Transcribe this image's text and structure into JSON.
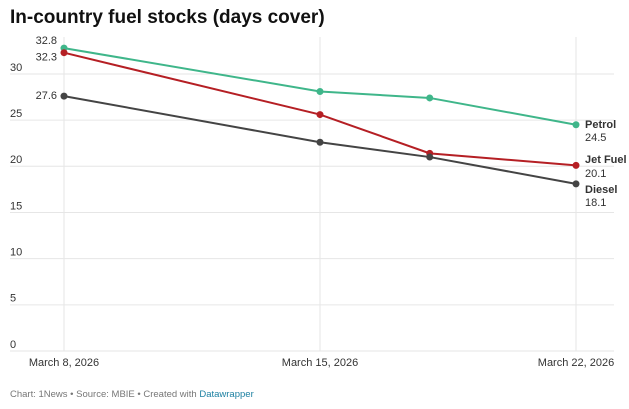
{
  "chart_data": {
    "type": "line",
    "title": "In-country fuel stocks (days cover)",
    "x": [
      "2026-03-08",
      "2026-03-15",
      "2026-03-18",
      "2026-03-22"
    ],
    "series": [
      {
        "name": "Petrol",
        "color": "#3fb68a",
        "values": [
          32.8,
          28.1,
          27.4,
          24.5
        ]
      },
      {
        "name": "Jet Fuel",
        "color": "#b51f24",
        "values": [
          32.3,
          25.6,
          21.4,
          20.1
        ]
      },
      {
        "name": "Diesel",
        "color": "#444444",
        "values": [
          27.6,
          22.6,
          21.0,
          18.1
        ]
      }
    ],
    "xlim": [
      "2026-03-08",
      "2026-03-22"
    ],
    "xticks": [
      {
        "value": "2026-03-08",
        "label": "March 8, 2026"
      },
      {
        "value": "2026-03-15",
        "label": "March 15, 2026"
      },
      {
        "value": "2026-03-22",
        "label": "March 22, 2026"
      }
    ],
    "ylim": [
      0,
      34
    ],
    "yticks": [
      0,
      5,
      10,
      15,
      20,
      25,
      30
    ],
    "grid": true,
    "footer": {
      "text": "Chart: 1News • Source: MBIE • Created with",
      "link": "Datawrapper"
    }
  }
}
